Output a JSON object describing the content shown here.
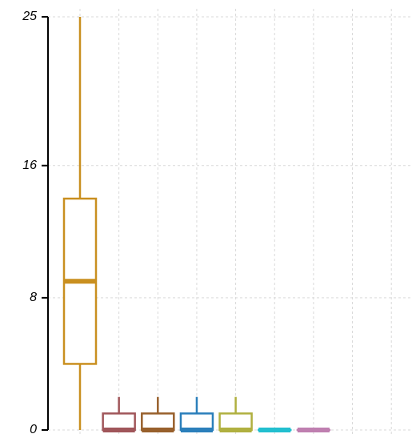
{
  "chart_data": {
    "type": "box",
    "categories": [
      null,
      null,
      null,
      null,
      null,
      null,
      null,
      null,
      null
    ],
    "min": [
      0,
      0,
      0,
      0,
      0,
      0,
      0,
      null,
      null
    ],
    "q1": [
      4,
      0,
      0,
      0,
      0,
      0,
      0,
      null,
      null
    ],
    "median": [
      9,
      0,
      0,
      0,
      0,
      0,
      0,
      null,
      null
    ],
    "q3": [
      14,
      1,
      1,
      1,
      1,
      0,
      0,
      null,
      null
    ],
    "max": [
      25,
      2,
      2,
      2,
      2,
      0,
      0,
      null,
      null
    ],
    "colors": [
      "#c98f1f",
      "#a0565a",
      "#98602c",
      "#2b7fbb",
      "#b0b040",
      "#22bfcf",
      "#bf7fb0",
      null,
      null
    ],
    "ylim": [
      0,
      25
    ],
    "yticks": [
      0,
      8,
      16,
      25
    ],
    "grid": true
  }
}
